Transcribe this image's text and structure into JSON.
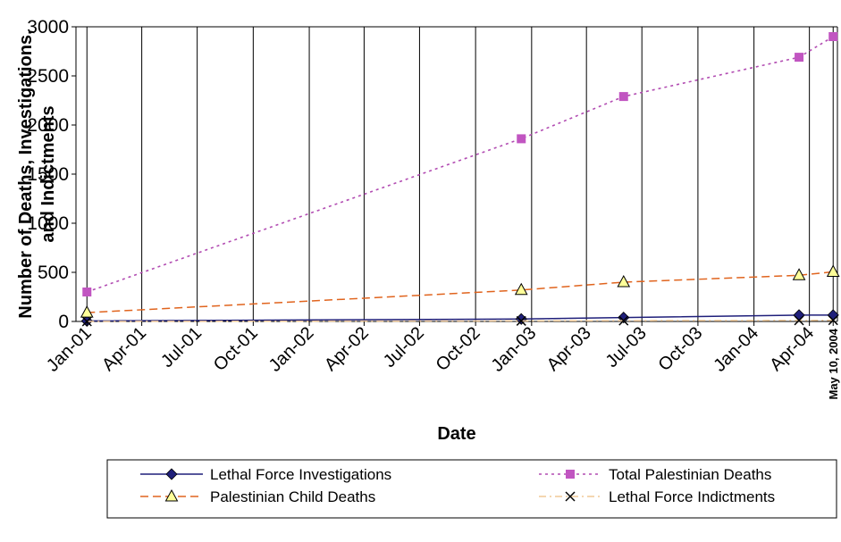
{
  "chart_data": {
    "type": "line",
    "title": "",
    "xlabel": "Date",
    "ylabel_lines": [
      "Number of Deaths, Investigations,",
      "and Indictments"
    ],
    "ylim": [
      0,
      3000
    ],
    "y_ticks": [
      "0",
      "500",
      "1000",
      "1500",
      "2000",
      "2500",
      "3000"
    ],
    "y_tick_values": [
      0,
      500,
      1000,
      1500,
      2000,
      2500,
      3000
    ],
    "x_ticks": [
      "Jan-01",
      "Apr-01",
      "Jul-01",
      "Oct-01",
      "Jan-02",
      "Apr-02",
      "Jul-02",
      "Oct-02",
      "Jan-03",
      "Apr-03",
      "Jul-03",
      "Oct-03",
      "Jan-04",
      "Apr-04",
      "May 10, 2004"
    ],
    "x_tick_dates": [
      "2001-01-01",
      "2001-04-01",
      "2001-07-01",
      "2001-10-01",
      "2002-01-01",
      "2002-04-01",
      "2002-07-01",
      "2002-10-01",
      "2003-01-01",
      "2003-04-01",
      "2003-07-01",
      "2003-10-01",
      "2004-01-01",
      "2004-04-01",
      "2004-05-10"
    ],
    "x_range": [
      "2000-12-14",
      "2004-05-17"
    ],
    "grid": "vertical",
    "legend_position": "bottom",
    "series": [
      {
        "name": "Lethal Force Investigations",
        "color": "#1F1F7A",
        "line": "solid",
        "marker": "diamond",
        "marker_color": "#1F1F7A",
        "points": [
          [
            "2001-01-01",
            5
          ],
          [
            "2002-12-15",
            25
          ],
          [
            "2003-06-01",
            40
          ],
          [
            "2004-03-15",
            65
          ],
          [
            "2004-05-10",
            65
          ]
        ]
      },
      {
        "name": "Total Palestinian Deaths",
        "color": "#B24CB2",
        "line": "dotted",
        "marker": "square",
        "marker_color": "#C155C1",
        "points": [
          [
            "2001-01-01",
            300
          ],
          [
            "2002-12-15",
            1860
          ],
          [
            "2003-06-01",
            2290
          ],
          [
            "2004-03-15",
            2690
          ],
          [
            "2004-05-10",
            2900
          ]
        ]
      },
      {
        "name": "Palestinian Child Deaths",
        "color": "#E0641E",
        "line": "dashed",
        "marker": "triangle",
        "marker_color": "#FFFF99",
        "points": [
          [
            "2001-01-01",
            90
          ],
          [
            "2002-12-15",
            320
          ],
          [
            "2003-06-01",
            400
          ],
          [
            "2004-03-15",
            470
          ],
          [
            "2004-05-10",
            505
          ]
        ]
      },
      {
        "name": "Lethal Force Indictments",
        "color": "#F0C896",
        "line": "dashdot",
        "marker": "x",
        "marker_color": "#000000",
        "points": [
          [
            "2001-01-01",
            0
          ],
          [
            "2002-12-15",
            5
          ],
          [
            "2003-06-01",
            8
          ],
          [
            "2004-03-15",
            10
          ],
          [
            "2004-05-10",
            12
          ]
        ]
      }
    ]
  }
}
